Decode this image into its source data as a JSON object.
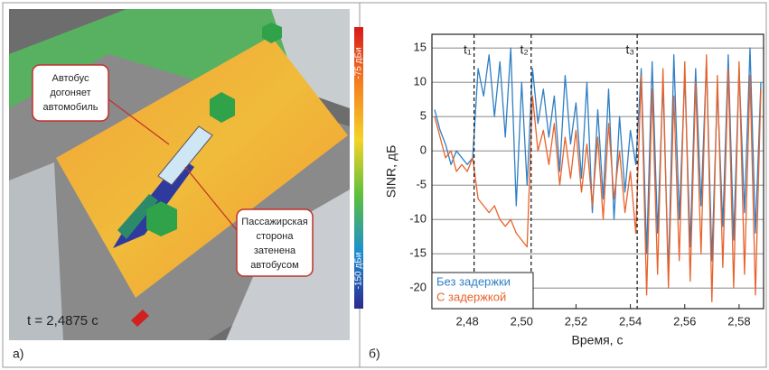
{
  "left_panel": {
    "callouts": [
      {
        "lines": [
          "Автобус",
          "догоняет",
          "автомобиль"
        ]
      },
      {
        "lines": [
          "Пассажирская",
          "сторона",
          "затенена",
          "автобусом"
        ]
      }
    ],
    "time_label": "t = 2,4875 с",
    "colorbar": {
      "top_label": "-75 дБи",
      "bottom_label": "-150 дБи"
    },
    "panel_label": "а)"
  },
  "chart_data": {
    "type": "line",
    "panel_label": "б)",
    "xlabel": "Время, с",
    "ylabel": "SINR, дБ",
    "x": [
      2.468,
      2.47,
      2.472,
      2.474,
      2.476,
      2.478,
      2.48,
      2.482,
      2.484,
      2.486,
      2.488,
      2.49,
      2.492,
      2.494,
      2.496,
      2.498,
      2.5,
      2.502,
      2.504,
      2.506,
      2.508,
      2.51,
      2.512,
      2.514,
      2.516,
      2.518,
      2.52,
      2.522,
      2.524,
      2.526,
      2.528,
      2.53,
      2.532,
      2.534,
      2.536,
      2.538,
      2.54,
      2.542,
      2.544,
      2.546,
      2.548,
      2.55,
      2.552,
      2.554,
      2.556,
      2.558,
      2.56,
      2.562,
      2.564,
      2.566,
      2.568,
      2.57,
      2.572,
      2.574,
      2.576,
      2.578,
      2.58,
      2.582,
      2.584,
      2.586,
      2.588
    ],
    "series": [
      {
        "name": "Без задержки",
        "color": "#2f7fc4",
        "values": [
          6,
          3,
          1,
          -2,
          0,
          -1,
          -2,
          -1,
          12,
          8,
          14,
          5,
          13,
          2,
          15,
          -8,
          10,
          -5,
          12,
          4,
          9,
          2,
          8,
          -3,
          11,
          1,
          7,
          -4,
          10,
          -9,
          6,
          -7,
          9,
          -10,
          5,
          -6,
          3,
          -2,
          12,
          -15,
          13,
          -12,
          10,
          -18,
          14,
          -10,
          11,
          -14,
          12,
          -8,
          13,
          -16,
          9,
          -11,
          14,
          -13,
          12,
          -9,
          15,
          -12,
          10
        ]
      },
      {
        "name": "С задержкой",
        "color": "#e8632b",
        "values": [
          5,
          2,
          -1,
          0,
          -3,
          -2,
          -3,
          -1,
          -7,
          -8,
          -9,
          -8,
          -10,
          -11,
          -10,
          -12,
          -13,
          -14,
          8,
          0,
          3,
          -2,
          4,
          -5,
          2,
          -4,
          3,
          -6,
          1,
          -8,
          2,
          -10,
          4,
          -7,
          0,
          -9,
          -3,
          -12,
          11,
          -21,
          9,
          -18,
          12,
          -20,
          8,
          -16,
          13,
          -19,
          10,
          -15,
          14,
          -22,
          11,
          -17,
          12,
          -20,
          13,
          -18,
          11,
          -21,
          9
        ]
      }
    ],
    "markers": [
      {
        "x": 2.4825,
        "label": "t₁"
      },
      {
        "x": 2.5035,
        "label": "t₂"
      },
      {
        "x": 2.5425,
        "label": "t₃"
      }
    ],
    "xlim": [
      2.467,
      2.589
    ],
    "ylim": [
      -23,
      17
    ],
    "xticks": [
      {
        "value": 2.48,
        "label": "2,48"
      },
      {
        "value": 2.5,
        "label": "2,50"
      },
      {
        "value": 2.52,
        "label": "2,52"
      },
      {
        "value": 2.54,
        "label": "2,54"
      },
      {
        "value": 2.56,
        "label": "2,56"
      },
      {
        "value": 2.58,
        "label": "2,58"
      }
    ],
    "yticks": [
      -20,
      -15,
      -10,
      -5,
      0,
      5,
      10,
      15
    ],
    "grid": true,
    "legend": "lower left"
  }
}
